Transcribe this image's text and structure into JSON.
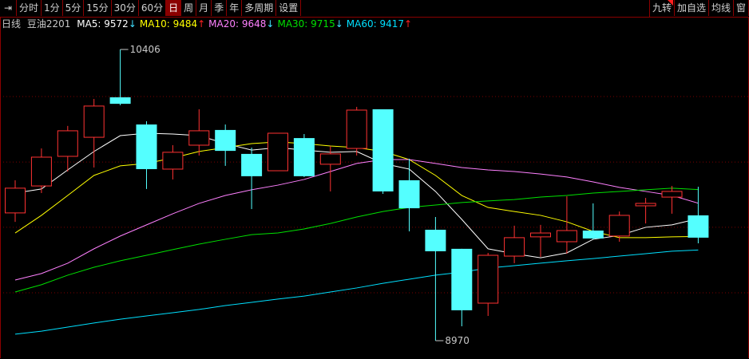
{
  "toolbar": {
    "left_icon": "collapse-arrow-icon",
    "periods": [
      "分时",
      "1分",
      "5分",
      "15分",
      "30分",
      "60分",
      "日",
      "周",
      "月",
      "季",
      "年",
      "多周期",
      "设置"
    ],
    "active_period": "日",
    "right": [
      "九转",
      "加自选",
      "均线",
      "窗"
    ]
  },
  "legend": {
    "period": "日线",
    "symbol": "豆油2201",
    "ma": [
      {
        "label": "MA5: 9572",
        "arrow": "↓",
        "color": "#ffffff",
        "arrow_color": "#40e0ff"
      },
      {
        "label": "MA10: 9484",
        "arrow": "↑",
        "color": "#ffff00",
        "arrow_color": "#ff2020"
      },
      {
        "label": "MA20: 9648",
        "arrow": "↓",
        "color": "#ff80ff",
        "arrow_color": "#40e0ff"
      },
      {
        "label": "MA30: 9715",
        "arrow": "↓",
        "color": "#00e000",
        "arrow_color": "#40e0ff"
      },
      {
        "label": "MA60: 9417",
        "arrow": "↑",
        "color": "#00e0ff",
        "arrow_color": "#ff2020"
      }
    ]
  },
  "chart_data": {
    "type": "candlestick",
    "up_color": "#ff3232",
    "down_color": "#54ffff",
    "annotations": [
      {
        "label": "10406",
        "type": "max"
      },
      {
        "label": "8970",
        "type": "min"
      }
    ],
    "ohlc": [
      [
        9600,
        9761,
        9556,
        9722
      ],
      [
        9733,
        9918,
        9698,
        9875
      ],
      [
        9879,
        10029,
        9804,
        10005
      ],
      [
        9973,
        10162,
        9824,
        10127
      ],
      [
        10170,
        10406,
        10131,
        10138
      ],
      [
        10036,
        10052,
        9718,
        9816
      ],
      [
        9816,
        9934,
        9765,
        9899
      ],
      [
        9934,
        10111,
        9883,
        10005
      ],
      [
        10009,
        10036,
        9832,
        9906
      ],
      [
        9891,
        9922,
        9619,
        9781
      ],
      [
        9808,
        9993,
        9808,
        9993
      ],
      [
        9969,
        9989,
        9777,
        9781
      ],
      [
        9840,
        9930,
        9706,
        9891
      ],
      [
        9918,
        10123,
        9883,
        10107
      ],
      [
        10111,
        10111,
        9694,
        9706
      ],
      [
        9761,
        9867,
        9509,
        9623
      ],
      [
        9517,
        9580,
        8970,
        9411
      ],
      [
        9423,
        9423,
        9041,
        9120
      ],
      [
        9155,
        9403,
        9092,
        9391
      ],
      [
        9387,
        9537,
        9352,
        9478
      ],
      [
        9482,
        9541,
        9383,
        9501
      ],
      [
        9458,
        9682,
        9399,
        9513
      ],
      [
        9513,
        9647,
        9470,
        9474
      ],
      [
        9486,
        9607,
        9458,
        9588
      ],
      [
        9635,
        9674,
        9548,
        9647
      ],
      [
        9678,
        9733,
        9596,
        9706
      ],
      [
        9588,
        9729,
        9450,
        9478
      ]
    ],
    "ma_series": [
      {
        "name": "MA5",
        "color": "#ffffff",
        "values": [
          9698,
          9718,
          9812,
          9903,
          9981,
          9993,
          9989,
          9981,
          9942,
          9910,
          9922,
          9910,
          9899,
          9903,
          9844,
          9816,
          9706,
          9568,
          9423,
          9399,
          9379,
          9403,
          9470,
          9489,
          9529,
          9541,
          9572
        ]
      },
      {
        "name": "MA10",
        "color": "#ffff00",
        "values": [
          9501,
          9588,
          9686,
          9785,
          9832,
          9844,
          9871,
          9903,
          9922,
          9942,
          9950,
          9942,
          9930,
          9922,
          9903,
          9863,
          9785,
          9686,
          9627,
          9607,
          9588,
          9556,
          9509,
          9478,
          9478,
          9482,
          9484
        ]
      },
      {
        "name": "MA20",
        "color": "#ff80ff",
        "values": [
          9269,
          9301,
          9352,
          9423,
          9486,
          9541,
          9596,
          9647,
          9686,
          9714,
          9737,
          9765,
          9804,
          9844,
          9863,
          9863,
          9844,
          9824,
          9812,
          9804,
          9792,
          9777,
          9753,
          9726,
          9706,
          9686,
          9648
        ]
      },
      {
        "name": "MA30",
        "color": "#00e000",
        "values": [
          9210,
          9246,
          9293,
          9332,
          9364,
          9391,
          9419,
          9446,
          9470,
          9493,
          9501,
          9521,
          9548,
          9580,
          9607,
          9627,
          9639,
          9651,
          9659,
          9666,
          9678,
          9686,
          9698,
          9706,
          9714,
          9722,
          9715
        ]
      },
      {
        "name": "MA60",
        "color": "#00e0ff",
        "values": [
          9002,
          9017,
          9037,
          9057,
          9076,
          9092,
          9108,
          9124,
          9143,
          9159,
          9175,
          9190,
          9210,
          9230,
          9253,
          9273,
          9293,
          9308,
          9328,
          9340,
          9352,
          9364,
          9375,
          9387,
          9399,
          9411,
          9417
        ]
      }
    ],
    "grid": true
  }
}
